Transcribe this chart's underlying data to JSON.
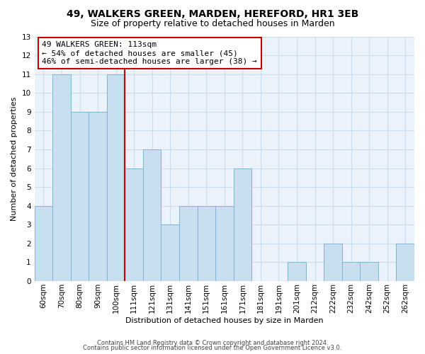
{
  "title": "49, WALKERS GREEN, MARDEN, HEREFORD, HR1 3EB",
  "subtitle": "Size of property relative to detached houses in Marden",
  "xlabel": "Distribution of detached houses by size in Marden",
  "ylabel": "Number of detached properties",
  "bins": [
    "60sqm",
    "70sqm",
    "80sqm",
    "90sqm",
    "100sqm",
    "111sqm",
    "121sqm",
    "131sqm",
    "141sqm",
    "151sqm",
    "161sqm",
    "171sqm",
    "181sqm",
    "191sqm",
    "201sqm",
    "212sqm",
    "222sqm",
    "232sqm",
    "242sqm",
    "252sqm",
    "262sqm"
  ],
  "counts": [
    4,
    11,
    9,
    9,
    11,
    6,
    7,
    3,
    4,
    4,
    4,
    6,
    0,
    0,
    1,
    0,
    2,
    1,
    1,
    0,
    2
  ],
  "bar_color": "#c8dff0",
  "bar_edge_color": "#7fb4d4",
  "highlight_bin_index": 5,
  "highlight_color": "#cc0000",
  "annotation_text": "49 WALKERS GREEN: 113sqm\n← 54% of detached houses are smaller (45)\n46% of semi-detached houses are larger (38) →",
  "annotation_box_color": "#ffffff",
  "annotation_box_edge_color": "#cc0000",
  "ylim": [
    0,
    13
  ],
  "yticks": [
    0,
    1,
    2,
    3,
    4,
    5,
    6,
    7,
    8,
    9,
    10,
    11,
    12,
    13
  ],
  "footer1": "Contains HM Land Registry data © Crown copyright and database right 2024.",
  "footer2": "Contains public sector information licensed under the Open Government Licence v3.0.",
  "background_color": "#ffffff",
  "grid_color": "#ccdded",
  "title_fontsize": 10,
  "subtitle_fontsize": 9,
  "axis_label_fontsize": 8,
  "tick_fontsize": 7.5,
  "footer_fontsize": 6
}
